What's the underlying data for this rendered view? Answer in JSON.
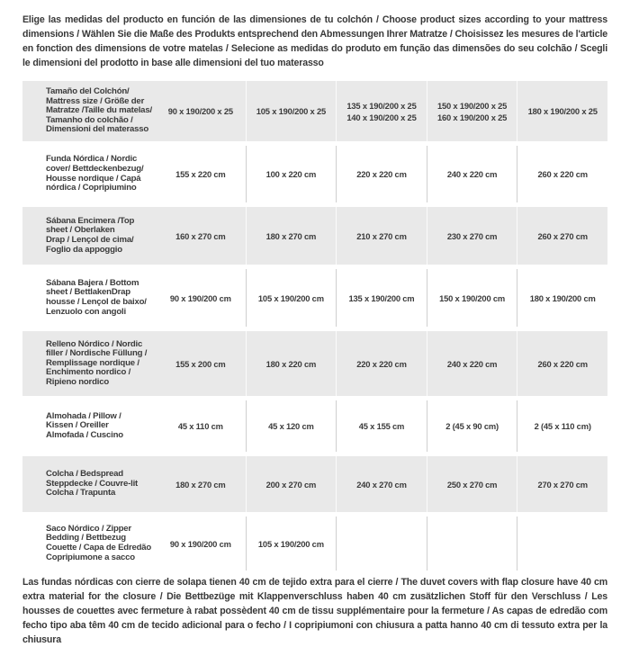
{
  "intro": "Elige las medidas del producto en función de las dimensiones de tu colchón / Choose product sizes according to your mattress dimensions / Wählen Sie die Maße des Produkts entsprechend den Abmessungen Ihrer Matratze / Choisissez les mesures de l'article en fonction des dimensions de votre matelas / Selecione as medidas do produto em função das dimensões do seu colchão / Scegli le dimensioni del prodotto in base alle dimensioni del tuo materasso",
  "table": {
    "rows": [
      {
        "label": "Tamaño del Colchón/\nMattress size / Größe der\nMatratze /Taille du matelas/\nTamanho do colchão /\nDimensioni del materasso",
        "values": [
          "90 x 190/200 x 25",
          "105 x 190/200 x 25",
          "135 x 190/200 x 25\n140 x 190/200 x 25",
          "150 x 190/200 x 25\n160 x 190/200 x 25",
          "180 x 190/200 x 25"
        ]
      },
      {
        "label": "Funda Nórdica /  Nordic\ncover/ Bettdeckenbezug/\nHousse nordique  / Capá\nnórdica / Copripiumino",
        "values": [
          "155 x 220 cm",
          "100 x 220 cm",
          "220 x 220 cm",
          "240 x 220 cm",
          "260 x 220 cm"
        ]
      },
      {
        "label": "Sábana Encimera /Top\nsheet / Oberlaken\nDrap / Lençol de cima/\nFoglio da appoggio",
        "values": [
          "160 x 270 cm",
          "180 x 270 cm",
          "210 x 270 cm",
          "230 x 270 cm",
          "260 x 270 cm"
        ]
      },
      {
        "label": "Sábana Bajera / Bottom\nsheet / BettlakenDrap\nhousse / Lençol de baixo/\nLenzuolo con angoli",
        "values": [
          "90 x 190/200 cm",
          "105 x 190/200 cm",
          "135 x 190/200 cm",
          "150 x 190/200 cm",
          "180 x 190/200 cm"
        ]
      },
      {
        "label": "Relleno Nórdico / Nordic\nfiller / Nordische Füllung /\nRemplissage nordique /\nEnchimento nordico /\nRipieno nordico",
        "values": [
          "155 x 200 cm",
          "180 x 220 cm",
          "220 x 220 cm",
          "240 x 220 cm",
          "260 x 220 cm"
        ]
      },
      {
        "label": "Almohada  / Pillow /\nKissen / Oreiller\nAlmofada / Cuscino",
        "values": [
          "45 x 110 cm",
          "45 x 120 cm",
          "45 x 155 cm",
          "2 (45 x 90 cm)",
          "2 (45 x 110 cm)"
        ]
      },
      {
        "label": "Colcha / Bedspread\nSteppdecke / Couvre-lit\nColcha / Trapunta",
        "values": [
          "180 x 270 cm",
          "200 x 270 cm",
          "240 x 270 cm",
          "250 x 270 cm",
          "270 x 270 cm"
        ]
      },
      {
        "label": "Saco Nórdico / Zipper\nBedding / Bettbezug\nCouette  / Capa de Edredão\nCopripiumone a sacco",
        "values": [
          "90 x 190/200 cm",
          "105 x 190/200 cm",
          "",
          "",
          ""
        ]
      }
    ]
  },
  "footer": "Las fundas nórdicas con cierre de solapa tienen 40 cm de tejido extra para el cierre  /  The duvet covers with flap closure have 40 cm extra material for the closure / Die Bettbezüge mit Klappenverschluss haben 40 cm zusätzlichen Stoff für den Verschluss / Les housses de couettes avec fermeture à rabat possèdent 40 cm de tissu supplémentaire pour la fermeture / As capas de edredão com fecho tipo aba têm 40 cm de tecido adicional para o fecho / I copripiumoni con chiusura a patta hanno 40 cm di tessuto extra per la chiusura",
  "colors": {
    "row_shade": "#e9e9e9",
    "text": "#3b3b3b"
  }
}
